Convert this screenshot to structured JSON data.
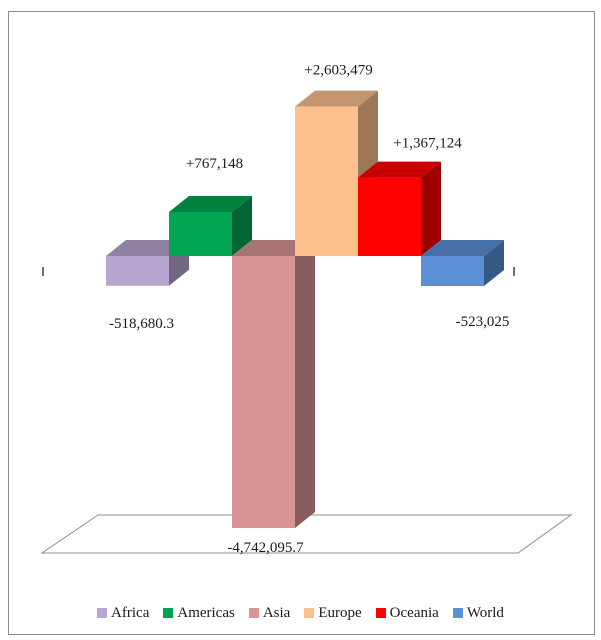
{
  "chart_data": {
    "type": "bar",
    "title": "",
    "xlabel": "",
    "ylabel": "",
    "categories": [
      "Africa",
      "Americas",
      "Asia",
      "Europe",
      "Oceania",
      "World"
    ],
    "values": [
      -518680.3,
      767148,
      -4742095.7,
      2603479,
      1367124,
      -523025
    ],
    "data_labels": [
      "-518,680.3",
      "+767,148",
      "-4,742,095.7",
      "+2,603,479",
      "+1,367,124",
      "-523,025"
    ],
    "colors": [
      "#b6a6cf",
      "#00a651",
      "#d99595",
      "#fbc08e",
      "#ff0000",
      "#5b8fd6"
    ],
    "legend": {
      "position": "bottom"
    },
    "grid": false
  }
}
